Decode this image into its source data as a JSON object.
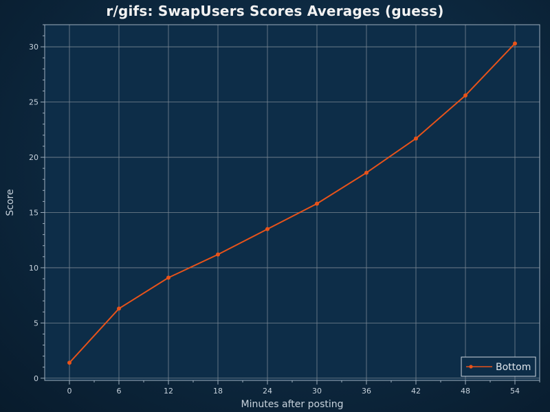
{
  "chart_data": {
    "type": "line",
    "title": "r/gifs: SwapUsers Scores Averages (guess)",
    "xlabel": "Minutes after posting",
    "ylabel": "Score",
    "x": [
      0,
      6,
      12,
      18,
      24,
      30,
      36,
      42,
      48,
      54
    ],
    "xticks": [
      0,
      6,
      12,
      18,
      24,
      30,
      36,
      42,
      48,
      54
    ],
    "yticks": [
      0,
      5,
      10,
      15,
      20,
      25,
      30
    ],
    "xlim": [
      -3,
      57
    ],
    "ylim": [
      -0.2,
      32.0
    ],
    "grid": true,
    "legend_position": "bottom-right",
    "series": [
      {
        "name": "Bottom",
        "color": "#e8531a",
        "values": [
          1.4,
          6.3,
          9.1,
          11.2,
          13.5,
          15.8,
          18.6,
          21.7,
          25.6,
          30.3
        ]
      }
    ]
  },
  "colors": {
    "plot_background": "#0d2d48",
    "grid": "#7a8793",
    "axis": "#9fb0bf",
    "text": "#c8d3dd"
  }
}
